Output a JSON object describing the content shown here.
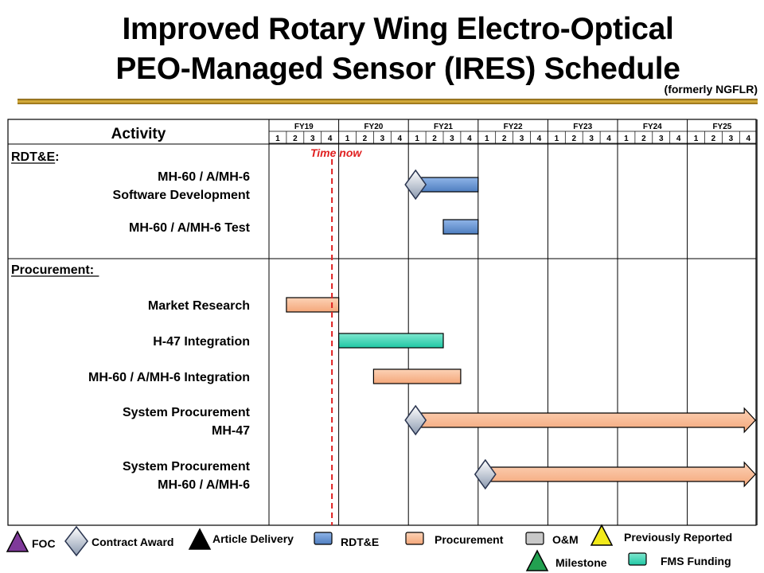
{
  "title_line1": "Improved Rotary Wing Electro-Optical",
  "title_line2": "PEO-Managed Sensor (IRES) Schedule",
  "subtitle": "(formerly NGFLR)",
  "activity_header": "Activity",
  "time_now_label": "Time now",
  "time_now_quarter": 2.7,
  "fiscal_years": [
    "FY19",
    "FY20",
    "FY21",
    "FY22",
    "FY23",
    "FY24",
    "FY25"
  ],
  "quarter_labels": [
    "1",
    "2",
    "3",
    "4"
  ],
  "sections": [
    {
      "label": "RDT&E:",
      "row": 0
    },
    {
      "label": "Procurement:",
      "row": 5
    }
  ],
  "activities": [
    {
      "lines": [
        "MH-60 / A/MH-6",
        "Software Development"
      ],
      "row": 1
    },
    {
      "lines": [
        "MH-60 / A/MH-6 Test"
      ],
      "row": 2
    },
    {
      "lines": [
        "Market Research"
      ],
      "row": 6
    },
    {
      "lines": [
        "H-47 Integration"
      ],
      "row": 7
    },
    {
      "lines": [
        "MH-60 / A/MH-6 Integration"
      ],
      "row": 8
    },
    {
      "lines": [
        "System Procurement",
        "MH-47"
      ],
      "row": 9
    },
    {
      "lines": [
        "System Procurement",
        "MH-60 / A/MH-6"
      ],
      "row": 10
    }
  ],
  "colors": {
    "rdte": "#4f7ec0",
    "procurement": "#f4a77a",
    "fms": "#1fc7a4",
    "om": "#c8c8c8",
    "foc": "#7f3a9a",
    "milestone": "#22a050",
    "previously_reported": "#f2ea1a",
    "time_now": "#e02020"
  },
  "chart_data": {
    "type": "gantt",
    "x_axis": "Fiscal year quarter",
    "x_range": [
      "FY19 Q1",
      "FY25 Q4"
    ],
    "bars": [
      {
        "activity": "MH-60 / A/MH-6 Software Development",
        "category": "RDT&E",
        "start": "FY21 Q1",
        "end": "FY21 Q4",
        "contract_award": "FY21 Q1"
      },
      {
        "activity": "MH-60 / A/MH-6 Test",
        "category": "RDT&E",
        "start": "FY21 Q3",
        "end": "FY21 Q4"
      },
      {
        "activity": "Market Research",
        "category": "Procurement",
        "start": "FY19 Q2",
        "end": "FY19 Q4"
      },
      {
        "activity": "H-47 Integration",
        "category": "FMS Funding",
        "start": "FY20 Q1",
        "end": "FY21 Q2"
      },
      {
        "activity": "MH-60 / A/MH-6 Integration",
        "category": "Procurement",
        "start": "FY20 Q3",
        "end": "FY21 Q3"
      },
      {
        "activity": "System Procurement MH-47",
        "category": "Procurement",
        "start": "FY21 Q1",
        "end": "FY25 Q4",
        "continues": true,
        "contract_award": "FY21 Q1"
      },
      {
        "activity": "System Procurement MH-60 / A/MH-6",
        "category": "Procurement",
        "start": "FY22 Q1",
        "end": "FY25 Q4",
        "continues": true,
        "contract_award": "FY22 Q1"
      }
    ],
    "time_now": "FY20 Q2",
    "legend": [
      "FOC",
      "Contract Award",
      "Article Delivery",
      "RDT&E",
      "Procurement",
      "O&M",
      "Previously Reported",
      "Milestone",
      "FMS Funding"
    ]
  },
  "legend": [
    {
      "label": "FOC",
      "symbol": "foc"
    },
    {
      "label": "Contract Award",
      "symbol": "diamond"
    },
    {
      "label": "Article Delivery",
      "symbol": "black_triangle"
    },
    {
      "label": "RDT&E",
      "symbol": "rdte"
    },
    {
      "label": "Procurement",
      "symbol": "procurement"
    },
    {
      "label": "O&M",
      "symbol": "om"
    },
    {
      "label": "Previously Reported",
      "symbol": "yellow_triangle"
    },
    {
      "label": "Milestone",
      "symbol": "green_triangle"
    },
    {
      "label": "FMS Funding",
      "symbol": "fms"
    }
  ]
}
